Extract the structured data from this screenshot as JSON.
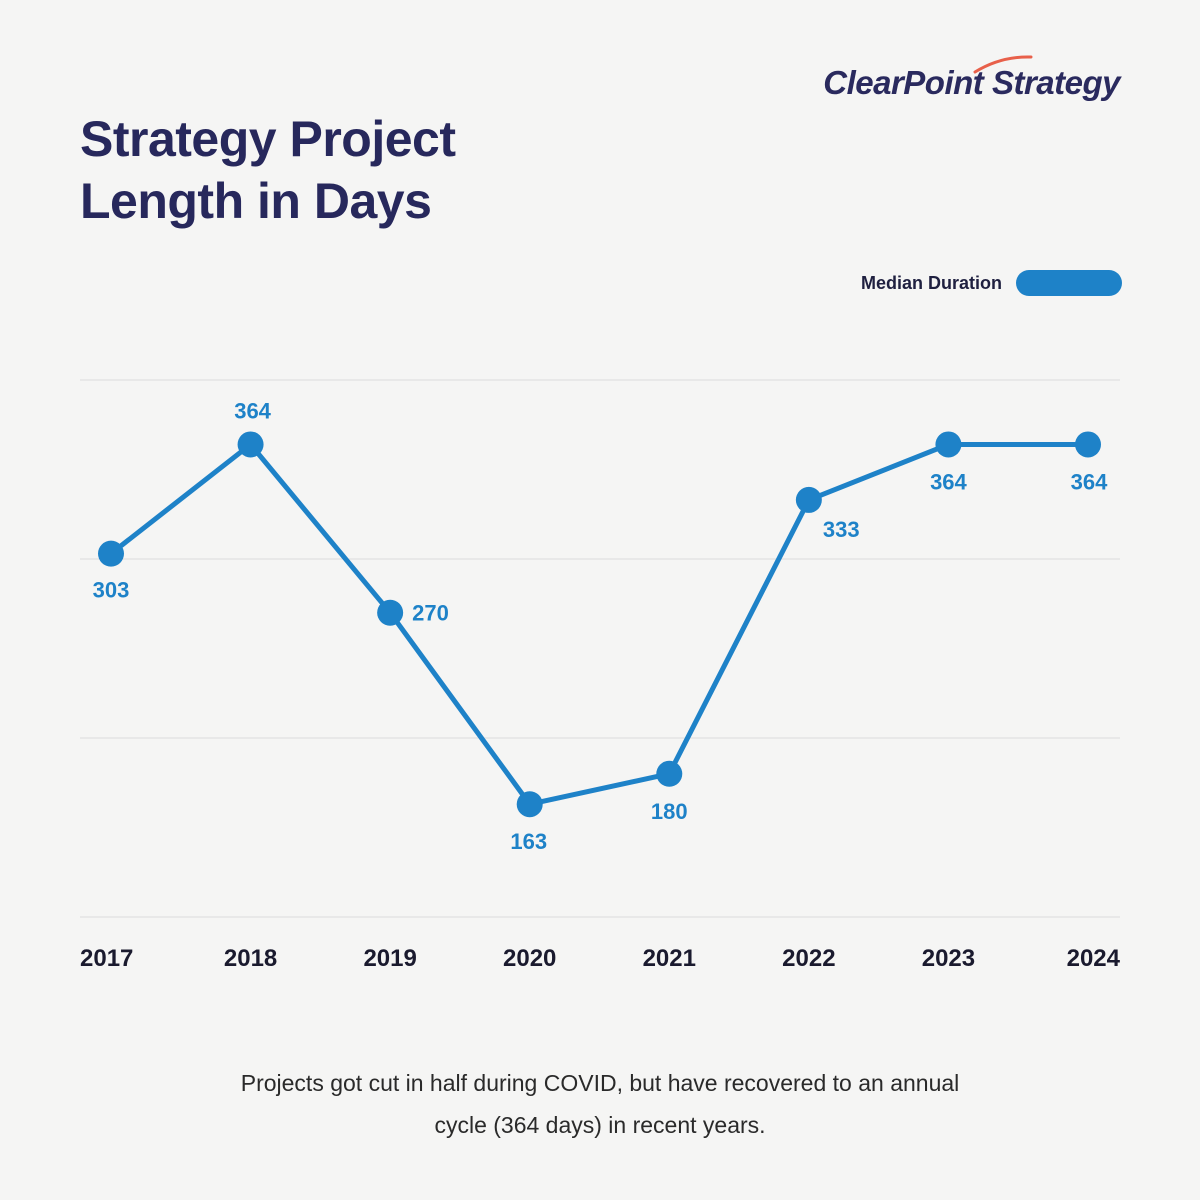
{
  "brand": {
    "name": "ClearPoint Strategy"
  },
  "colors": {
    "line": "#1e82c8",
    "title": "#27285c",
    "grid": "#dcdcdc",
    "accent": "#e8604a"
  },
  "chart_data": {
    "type": "line",
    "title": "Strategy Project Length in Days",
    "title_lines": [
      "Strategy Project",
      "Length in Days"
    ],
    "categories": [
      "2017",
      "2018",
      "2019",
      "2020",
      "2021",
      "2022",
      "2023",
      "2024"
    ],
    "series": [
      {
        "name": "Median Duration",
        "values": [
          303,
          364,
          270,
          163,
          180,
          333,
          364,
          364
        ]
      }
    ],
    "ylim": [
      100,
      400
    ],
    "grid": true,
    "legend": "top-right"
  },
  "caption": "Projects got cut in half during COVID, but have recovered to an annual cycle (364 days) in recent years."
}
